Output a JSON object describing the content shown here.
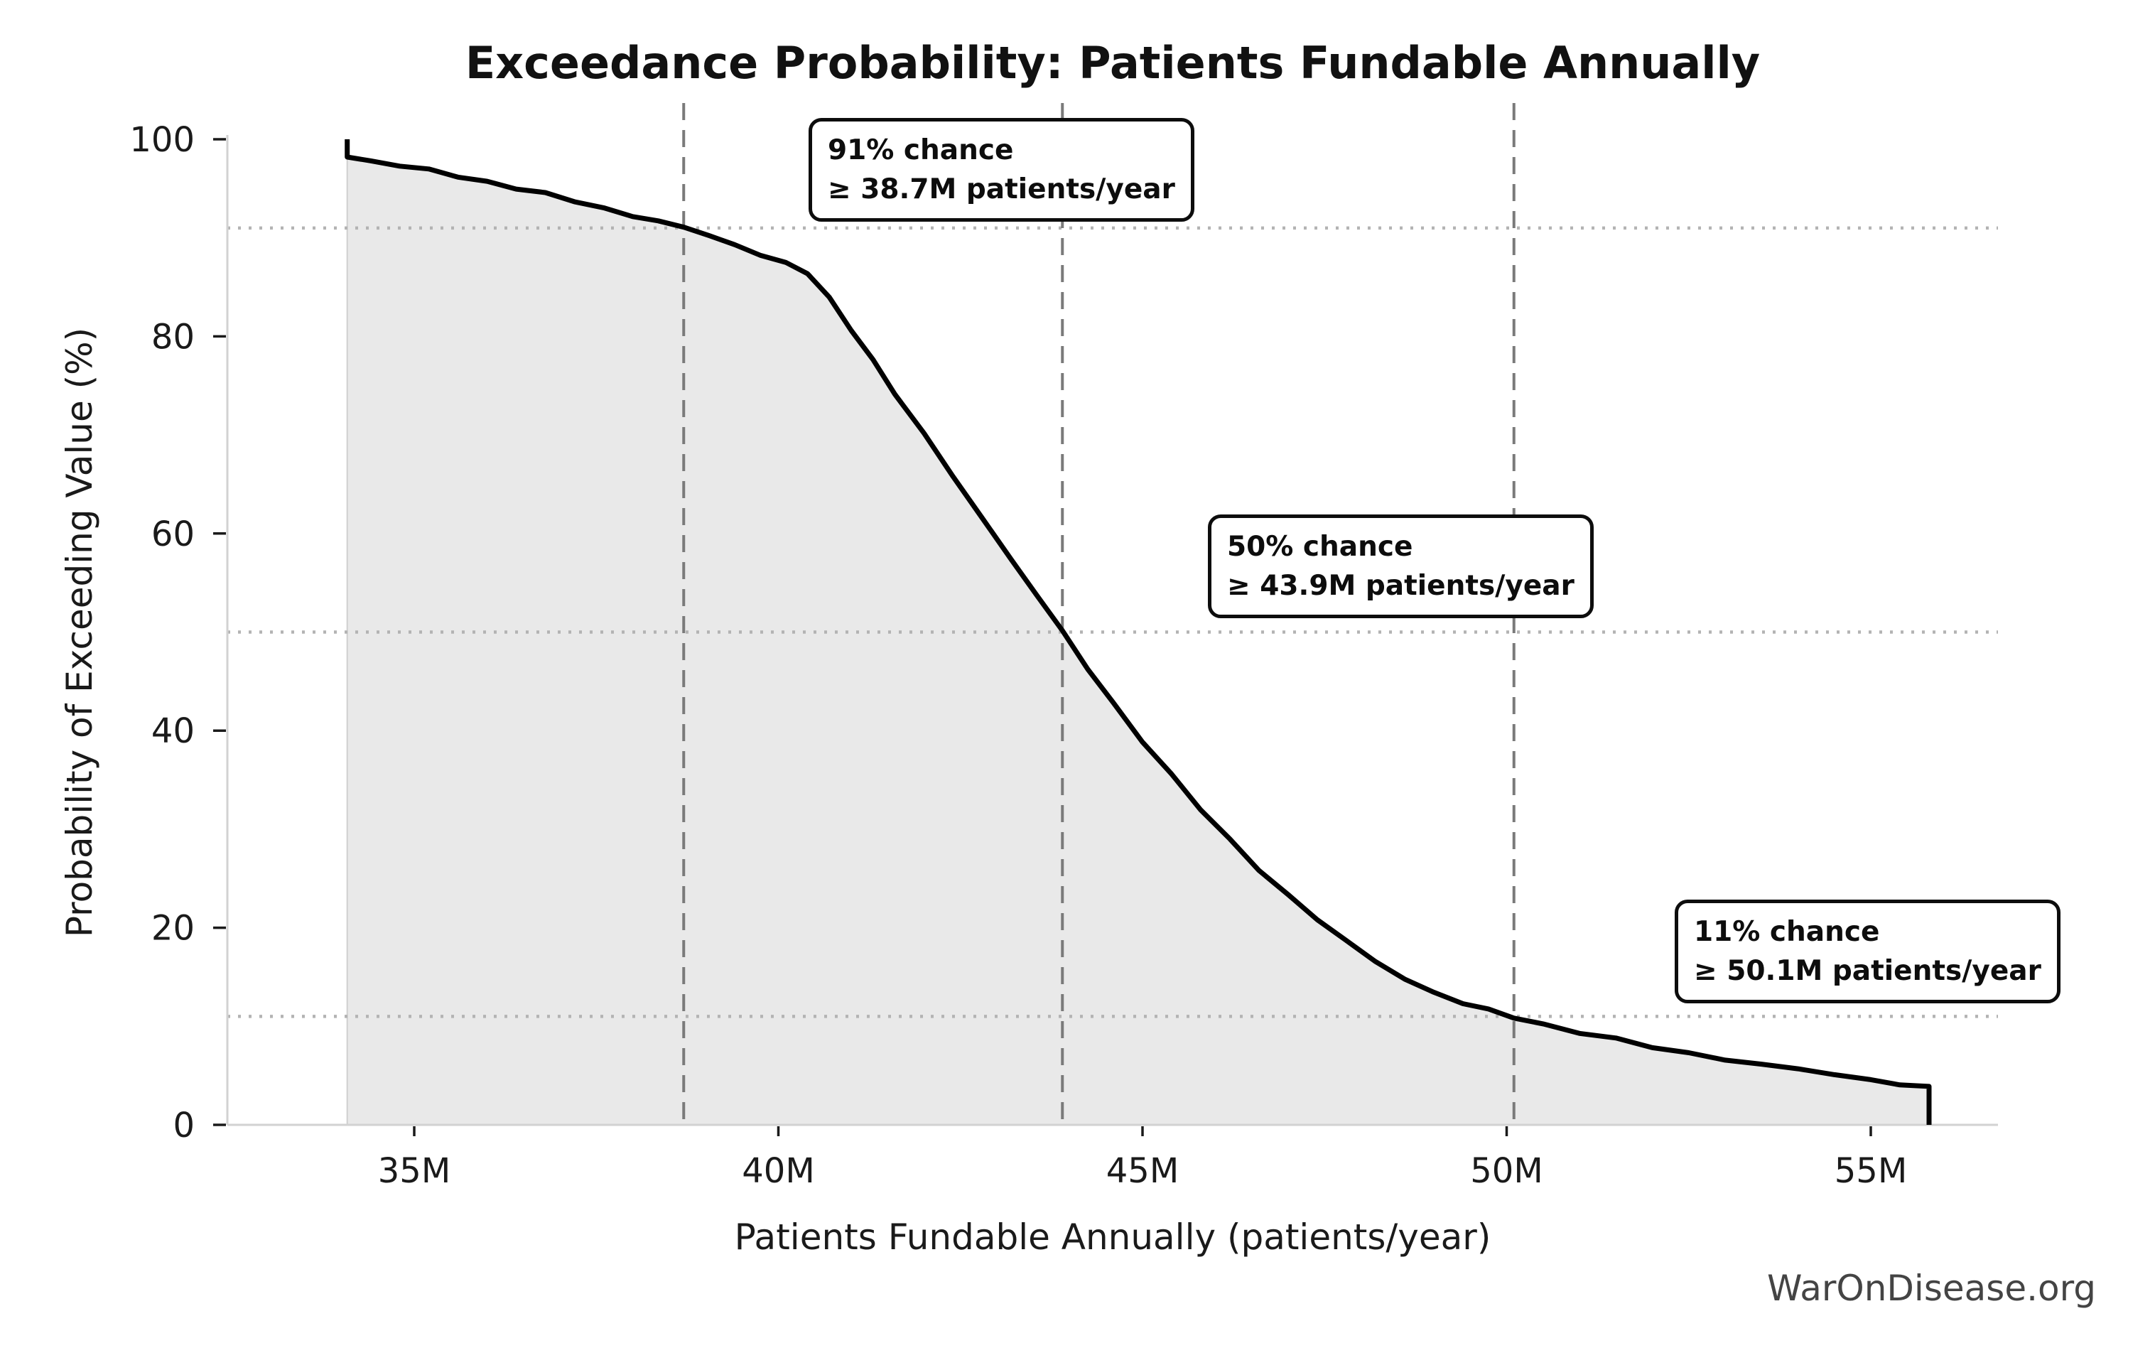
{
  "chart_data": {
    "type": "area",
    "title": "Exceedance Probability: Patients Fundable Annually",
    "xlabel": "Patients Fundable Annually (patients/year)",
    "ylabel": "Probability of Exceeding Value (%)",
    "watermark": "WarOnDisease.org",
    "xlim_m": [
      32.4,
      56.8
    ],
    "ylim_pct": [
      0,
      100
    ],
    "x_ticks": [
      {
        "value": 35,
        "label": "35M"
      },
      {
        "value": 40,
        "label": "40M"
      },
      {
        "value": 45,
        "label": "45M"
      },
      {
        "value": 50,
        "label": "50M"
      },
      {
        "value": 55,
        "label": "55M"
      }
    ],
    "y_ticks": [
      {
        "value": 0,
        "label": "0"
      },
      {
        "value": 20,
        "label": "20"
      },
      {
        "value": 40,
        "label": "40"
      },
      {
        "value": 60,
        "label": "60"
      },
      {
        "value": 80,
        "label": "80"
      },
      {
        "value": 100,
        "label": "100"
      }
    ],
    "grid": "guide lines only (dotted horizontal at annotation probabilities, dashed vertical at annotation values)",
    "legend": "none",
    "annotations": [
      {
        "prob_pct": 91,
        "value_m": 38.7,
        "line1": "91% chance",
        "line2": "≥ 38.7M patients/year"
      },
      {
        "prob_pct": 50,
        "value_m": 43.9,
        "line1": "50% chance",
        "line2": "≥ 43.9M patients/year"
      },
      {
        "prob_pct": 11,
        "value_m": 50.1,
        "line1": "11% chance",
        "line2": "≥ 50.1M patients/year"
      }
    ],
    "curve_points": [
      [
        34.08,
        100.0
      ],
      [
        34.08,
        98.2
      ],
      [
        34.4,
        97.8
      ],
      [
        34.8,
        97.3
      ],
      [
        35.2,
        96.8
      ],
      [
        35.6,
        96.3
      ],
      [
        36.0,
        95.7
      ],
      [
        36.4,
        95.1
      ],
      [
        36.8,
        94.4
      ],
      [
        37.2,
        93.7
      ],
      [
        37.6,
        93.0
      ],
      [
        38.0,
        92.3
      ],
      [
        38.35,
        91.7
      ],
      [
        38.7,
        91.0
      ],
      [
        39.05,
        90.2
      ],
      [
        39.4,
        89.3
      ],
      [
        39.75,
        88.4
      ],
      [
        40.1,
        87.4
      ],
      [
        40.4,
        86.4
      ],
      [
        40.7,
        83.8
      ],
      [
        41.0,
        80.8
      ],
      [
        41.3,
        77.6
      ],
      [
        41.6,
        74.2
      ],
      [
        42.0,
        70.0
      ],
      [
        42.4,
        65.8
      ],
      [
        42.8,
        61.6
      ],
      [
        43.2,
        57.4
      ],
      [
        43.55,
        53.7
      ],
      [
        43.9,
        50.0
      ],
      [
        44.25,
        46.3
      ],
      [
        44.6,
        42.8
      ],
      [
        45.0,
        39.0
      ],
      [
        45.4,
        35.4
      ],
      [
        45.8,
        32.0
      ],
      [
        46.2,
        28.9
      ],
      [
        46.6,
        26.0
      ],
      [
        47.0,
        23.3
      ],
      [
        47.4,
        20.8
      ],
      [
        47.8,
        18.6
      ],
      [
        48.2,
        16.6
      ],
      [
        48.6,
        14.9
      ],
      [
        49.0,
        13.4
      ],
      [
        49.4,
        12.3
      ],
      [
        49.75,
        11.6
      ],
      [
        50.1,
        11.0
      ],
      [
        50.5,
        10.2
      ],
      [
        51.0,
        9.4
      ],
      [
        51.5,
        8.6
      ],
      [
        52.0,
        7.9
      ],
      [
        52.5,
        7.3
      ],
      [
        53.0,
        6.7
      ],
      [
        53.5,
        6.1
      ],
      [
        54.0,
        5.6
      ],
      [
        54.5,
        5.1
      ],
      [
        55.0,
        4.6
      ],
      [
        55.4,
        4.2
      ],
      [
        55.8,
        3.9
      ],
      [
        55.8,
        0.0
      ]
    ],
    "colors": {
      "line": "#000000",
      "fill": "#e9e9e9",
      "fill_edge": "#cfcfcf",
      "dashed_guide": "#7a7a7a",
      "dotted_guide": "#b3b3b3",
      "spine": "#d2d2d2",
      "tick": "#1a1a1a",
      "watermark": "#444444"
    }
  }
}
